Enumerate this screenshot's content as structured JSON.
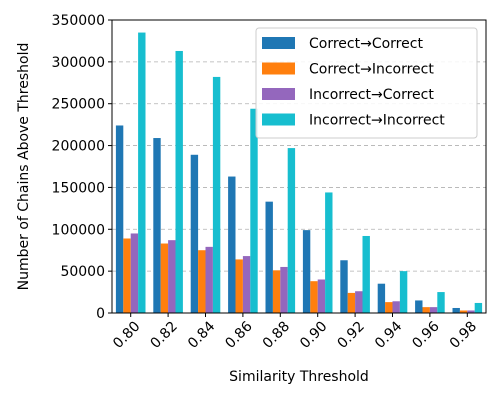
{
  "chart_data": {
    "type": "bar",
    "xlabel": "Similarity Threshold",
    "ylabel": "Number of Chains Above Threshold",
    "categories": [
      "0.80",
      "0.82",
      "0.84",
      "0.86",
      "0.88",
      "0.90",
      "0.92",
      "0.94",
      "0.96",
      "0.98"
    ],
    "ylim": [
      0,
      350000
    ],
    "yticks": [
      0,
      50000,
      100000,
      150000,
      200000,
      250000,
      300000,
      350000
    ],
    "ytick_labels": [
      "0",
      "50000",
      "100000",
      "150000",
      "200000",
      "250000",
      "300000",
      "350000"
    ],
    "grid": "y-dashed",
    "legend_position": "top-right",
    "series": [
      {
        "name": "Correct→Correct",
        "color": "#1f77b4",
        "values": [
          224000,
          209000,
          189000,
          163000,
          133000,
          99000,
          63000,
          35000,
          15000,
          6000
        ]
      },
      {
        "name": "Correct→Incorrect",
        "color": "#ff7f0e",
        "values": [
          89000,
          83000,
          75000,
          64000,
          51000,
          38000,
          24000,
          13000,
          7000,
          3000
        ]
      },
      {
        "name": "Incorrect→Correct",
        "color": "#9467bd",
        "values": [
          95000,
          87000,
          79000,
          68000,
          55000,
          40000,
          26000,
          14000,
          7000,
          3000
        ]
      },
      {
        "name": "Incorrect→Incorrect",
        "color": "#17becf",
        "values": [
          335000,
          313000,
          282000,
          244000,
          197000,
          144000,
          92000,
          50000,
          25000,
          12000
        ]
      }
    ]
  }
}
